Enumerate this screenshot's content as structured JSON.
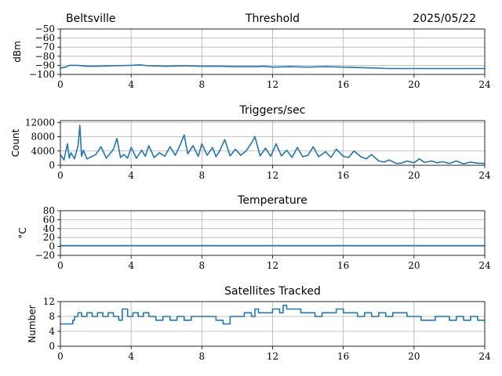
{
  "header": {
    "site": "Beltsville",
    "date": "2025/05/22"
  },
  "colors": {
    "series": "#1f77b4",
    "grid": "#b0b0b0"
  },
  "chart_data": [
    {
      "type": "line",
      "title": "Threshold",
      "xlabel": "",
      "ylabel": "dBm",
      "xlim": [
        0,
        24
      ],
      "ylim": [
        -100,
        -50
      ],
      "xticks": [
        0,
        4,
        8,
        12,
        16,
        20,
        24
      ],
      "yticks": [
        -100,
        -90,
        -80,
        -70,
        -60,
        -50
      ],
      "ytick_labels": [
        "−100",
        "−90",
        "−80",
        "−70",
        "−60",
        "−50"
      ],
      "grid": true,
      "series": [
        {
          "x": [
            0,
            0.3,
            0.5,
            1,
            1.5,
            2,
            3,
            4,
            4.5,
            5,
            6,
            7,
            8,
            9,
            10,
            11,
            11.5,
            12,
            13,
            14,
            15,
            16,
            17,
            18,
            18.5,
            19,
            20,
            22,
            24
          ],
          "y": [
            -93,
            -92,
            -90,
            -90,
            -91,
            -91,
            -90.5,
            -90,
            -89.5,
            -90.5,
            -91,
            -90.5,
            -91,
            -91,
            -91.5,
            -91.5,
            -91,
            -92,
            -91.5,
            -92,
            -91.5,
            -92,
            -92.5,
            -93,
            -93.5,
            -93.5,
            -93.5,
            -93.5,
            -93.5
          ]
        }
      ]
    },
    {
      "type": "line",
      "title": "Triggers/sec",
      "xlabel": "",
      "ylabel": "Count",
      "xlim": [
        0,
        24
      ],
      "ylim": [
        0,
        12500
      ],
      "xticks": [
        0,
        4,
        8,
        12,
        16,
        20,
        24
      ],
      "yticks": [
        0,
        4000,
        8000,
        12000
      ],
      "ytick_labels": [
        "0",
        "4000",
        "8000",
        "12000"
      ],
      "grid": true,
      "series": [
        {
          "x": [
            0,
            0.2,
            0.4,
            0.5,
            0.6,
            0.8,
            1.0,
            1.1,
            1.2,
            1.3,
            1.5,
            1.8,
            2.0,
            2.3,
            2.6,
            3.0,
            3.2,
            3.4,
            3.6,
            3.8,
            4.0,
            4.3,
            4.6,
            4.8,
            5.0,
            5.3,
            5.6,
            5.9,
            6.2,
            6.5,
            6.8,
            7.0,
            7.2,
            7.5,
            7.8,
            8.0,
            8.3,
            8.6,
            8.8,
            9.0,
            9.3,
            9.6,
            9.9,
            10.2,
            10.5,
            10.8,
            11.0,
            11.3,
            11.6,
            11.9,
            12.2,
            12.5,
            12.8,
            13.1,
            13.4,
            13.7,
            14.0,
            14.3,
            14.6,
            15.0,
            15.3,
            15.6,
            16.0,
            16.3,
            16.6,
            17.0,
            17.3,
            17.6,
            18.0,
            18.3,
            18.6,
            19.0,
            19.3,
            19.6,
            20.0,
            20.3,
            20.6,
            21.0,
            21.3,
            21.6,
            22.0,
            22.4,
            22.8,
            23.2,
            23.6,
            24.0
          ],
          "y": [
            3000,
            1500,
            6000,
            2000,
            3500,
            1800,
            5500,
            11200,
            2500,
            4200,
            1800,
            2500,
            3000,
            5200,
            2000,
            4500,
            7500,
            2200,
            3000,
            2000,
            5000,
            2000,
            4200,
            2500,
            5500,
            2200,
            3500,
            2500,
            5200,
            2800,
            6000,
            8500,
            3200,
            5500,
            2500,
            6000,
            2800,
            5000,
            2400,
            4000,
            7200,
            2600,
            4500,
            2800,
            4000,
            6200,
            8000,
            2600,
            4800,
            2500,
            6000,
            2600,
            4200,
            2200,
            5000,
            2400,
            2800,
            5200,
            2400,
            3800,
            2200,
            4500,
            2500,
            2200,
            4000,
            2400,
            1800,
            3000,
            1200,
            900,
            1500,
            500,
            600,
            1200,
            700,
            1800,
            800,
            1200,
            700,
            1000,
            500,
            1200,
            400,
            900,
            600,
            500
          ]
        }
      ]
    },
    {
      "type": "line",
      "title": "Temperature",
      "xlabel": "",
      "ylabel": "°C",
      "xlim": [
        0,
        24
      ],
      "ylim": [
        -20,
        80
      ],
      "xticks": [
        0,
        4,
        8,
        12,
        16,
        20,
        24
      ],
      "yticks": [
        -20,
        0,
        20,
        40,
        60,
        80
      ],
      "ytick_labels": [
        "−20",
        "0",
        "20",
        "40",
        "60",
        "80"
      ],
      "grid": true,
      "series": [
        {
          "x": [
            0,
            24
          ],
          "y": [
            2,
            2
          ]
        }
      ]
    },
    {
      "type": "line",
      "title": "Satellites Tracked",
      "xlabel": "",
      "ylabel": "Number",
      "xlim": [
        0,
        24
      ],
      "ylim": [
        0,
        12
      ],
      "xticks": [
        0,
        4,
        8,
        12,
        16,
        20,
        24
      ],
      "yticks": [
        0,
        4,
        8,
        12
      ],
      "ytick_labels": [
        "0",
        "4",
        "8",
        "12"
      ],
      "grid": true,
      "series": [
        {
          "x": [
            0,
            0.7,
            0.8,
            1.0,
            1.2,
            1.5,
            1.8,
            2.1,
            2.4,
            2.7,
            3.0,
            3.3,
            3.5,
            3.8,
            4.1,
            4.4,
            4.7,
            5.0,
            5.4,
            5.8,
            6.2,
            6.6,
            7.0,
            7.4,
            7.8,
            8.2,
            8.5,
            8.8,
            9.2,
            9.6,
            10.0,
            10.4,
            10.8,
            11.0,
            11.2,
            11.6,
            12.0,
            12.4,
            12.6,
            12.8,
            13.2,
            13.6,
            14.0,
            14.4,
            14.8,
            15.2,
            15.6,
            16.0,
            16.4,
            16.8,
            17.2,
            17.6,
            18.0,
            18.4,
            18.8,
            19.2,
            19.6,
            20.0,
            20.4,
            20.8,
            21.2,
            21.6,
            22.0,
            22.4,
            22.8,
            23.2,
            23.6,
            24.0
          ],
          "y": [
            6,
            7,
            8,
            9,
            8,
            9,
            8,
            9,
            8,
            9,
            8,
            7,
            10,
            8,
            9,
            8,
            9,
            8,
            7,
            8,
            7,
            8,
            7,
            8,
            8,
            8,
            8,
            7,
            6,
            8,
            8,
            9,
            8,
            10,
            9,
            9,
            10,
            9,
            11,
            10,
            10,
            9,
            9,
            8,
            9,
            9,
            10,
            9,
            9,
            8,
            9,
            8,
            9,
            8,
            9,
            9,
            8,
            8,
            7,
            7,
            8,
            8,
            7,
            8,
            7,
            8,
            7,
            7
          ]
        }
      ]
    }
  ]
}
